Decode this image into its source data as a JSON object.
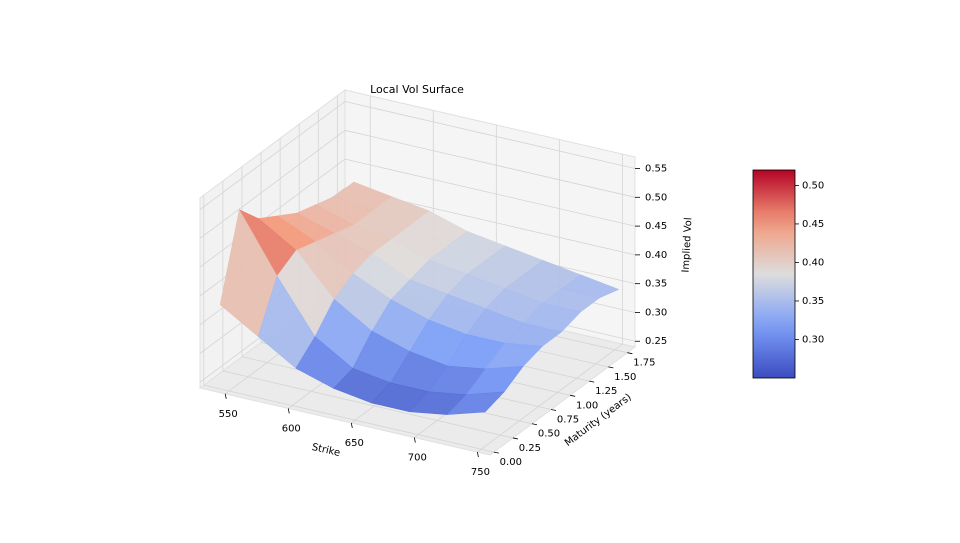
{
  "chart_data": {
    "type": "surface",
    "title": "Local Vol Surface",
    "xlabel": "Strike",
    "ylabel": "Maturity (years)",
    "zlabel": "Implied Vol",
    "colormap": "coolwarm",
    "grid": true,
    "x": [
      540,
      570,
      600,
      630,
      660,
      690,
      720,
      750
    ],
    "y": [
      0.05,
      0.3,
      0.55,
      0.8,
      1.05,
      1.3,
      1.55,
      1.8
    ],
    "z": [
      [
        0.38,
        0.34,
        0.3,
        0.28,
        0.27,
        0.27,
        0.28,
        0.3
      ],
      [
        0.52,
        0.42,
        0.33,
        0.29,
        0.28,
        0.28,
        0.29,
        0.31
      ],
      [
        0.48,
        0.44,
        0.37,
        0.33,
        0.31,
        0.3,
        0.31,
        0.33
      ],
      [
        0.46,
        0.43,
        0.39,
        0.36,
        0.34,
        0.33,
        0.33,
        0.34
      ],
      [
        0.44,
        0.42,
        0.4,
        0.37,
        0.36,
        0.35,
        0.34,
        0.34
      ],
      [
        0.43,
        0.41,
        0.4,
        0.38,
        0.37,
        0.36,
        0.35,
        0.35
      ],
      [
        0.42,
        0.41,
        0.4,
        0.38,
        0.37,
        0.36,
        0.35,
        0.35
      ],
      [
        0.42,
        0.41,
        0.4,
        0.38,
        0.37,
        0.36,
        0.35,
        0.34
      ]
    ],
    "xlim": [
      530,
      760
    ],
    "ylim": [
      -0.05,
      1.85
    ],
    "zlim": [
      0.24,
      0.57
    ],
    "xticks": [
      550,
      600,
      650,
      700,
      750
    ],
    "yticks": [
      {
        "value": 0,
        "label": "0.00"
      },
      {
        "value": 0.25,
        "label": "0.25"
      },
      {
        "value": 0.5,
        "label": "0.50"
      },
      {
        "value": 0.75,
        "label": "0.75"
      },
      {
        "value": 1,
        "label": "1.00"
      },
      {
        "value": 1.25,
        "label": "1.25"
      },
      {
        "value": 1.5,
        "label": "1.50"
      },
      {
        "value": 1.75,
        "label": "1.75"
      }
    ],
    "zticks": [
      {
        "value": 0.25,
        "label": "0.25"
      },
      {
        "value": 0.3,
        "label": "0.30"
      },
      0.35,
      {
        "value": 0.4,
        "label": "0.40"
      },
      0.45,
      {
        "value": 0.5,
        "label": "0.50"
      },
      0.55
    ],
    "clim": [
      0.25,
      0.52
    ],
    "cticks": [
      {
        "value": 0.3,
        "label": "0.30"
      },
      0.35,
      {
        "value": 0.4,
        "label": "0.40"
      },
      0.45,
      {
        "value": 0.5,
        "label": "0.50"
      }
    ]
  }
}
